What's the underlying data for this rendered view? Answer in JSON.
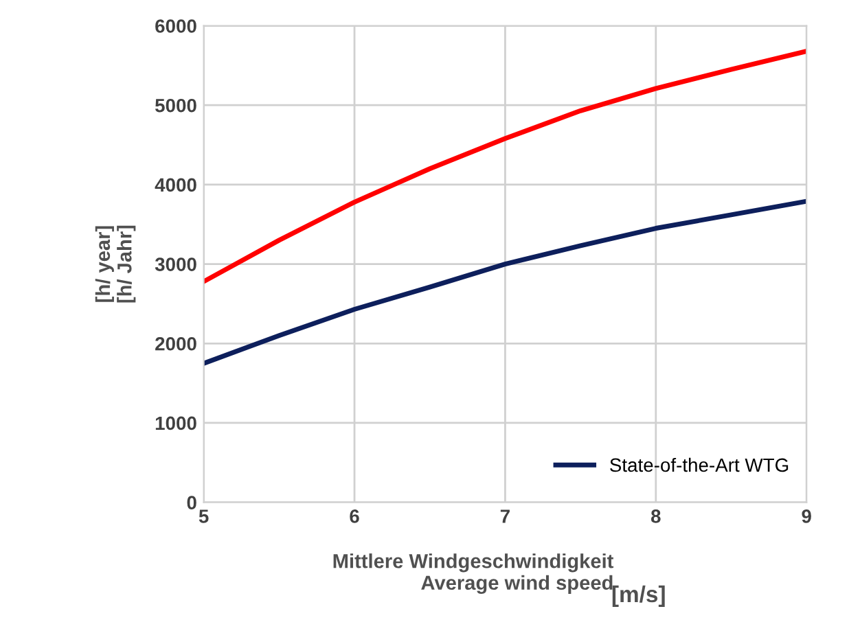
{
  "chart_data": {
    "type": "line",
    "xlabel": "Mittlere Windgeschwindigkeit\nAverage wind speed",
    "ylabel": "[h/ year]\n[h/ Jahr]",
    "annotations": [
      "[m/s]"
    ],
    "x": [
      5,
      5.5,
      6,
      6.5,
      7,
      7.5,
      8,
      8.5,
      9
    ],
    "series": [
      {
        "color": "#ff0000",
        "values": [
          2780,
          3300,
          3780,
          4200,
          4580,
          4930,
          5210,
          5450,
          5680
        ]
      },
      {
        "name": "State-of-the-Art WTG",
        "color": "#0d1f5c",
        "values": [
          1750,
          2100,
          2430,
          2710,
          3000,
          3230,
          3450,
          3620,
          3790
        ]
      }
    ],
    "xlim": [
      5,
      9
    ],
    "xticks": [
      5,
      6,
      7,
      8,
      9
    ],
    "ylim": [
      0,
      6000
    ],
    "yticks": [
      0,
      1000,
      2000,
      3000,
      4000,
      5000,
      6000
    ],
    "grid": true,
    "legend": "bottom right",
    "marker": "none",
    "line_style": "solid"
  }
}
